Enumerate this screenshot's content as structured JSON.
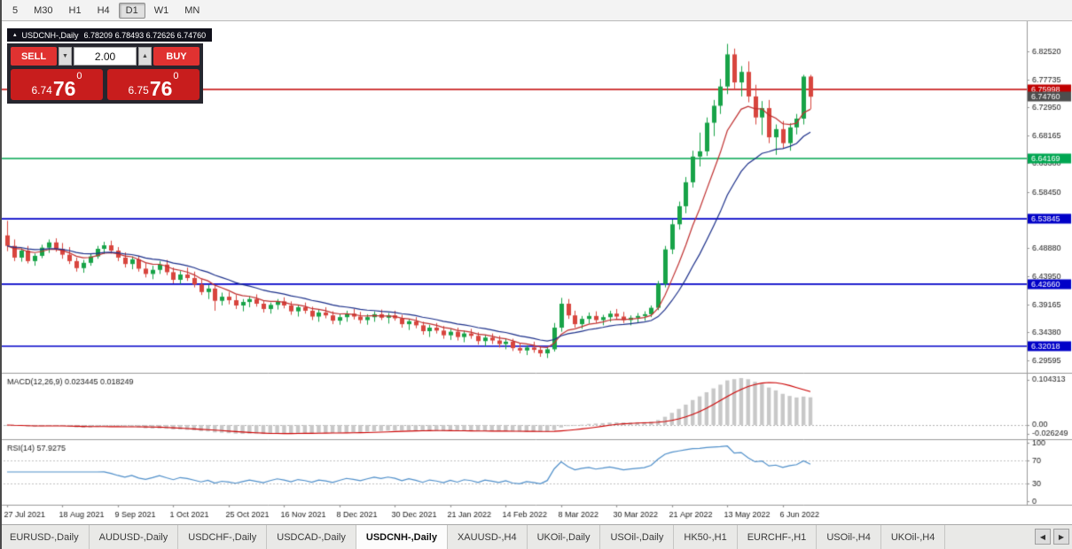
{
  "icons": {
    "marker": "▴",
    "chevron_down": "▼",
    "chevron_up": "▲",
    "nav_left": "◀",
    "nav_right": "▶"
  },
  "toolbar": {
    "timeframes": [
      {
        "label": "5",
        "active": false
      },
      {
        "label": "M30",
        "active": false
      },
      {
        "label": "H1",
        "active": false
      },
      {
        "label": "H4",
        "active": false
      },
      {
        "label": "D1",
        "active": true
      },
      {
        "label": "W1",
        "active": false
      },
      {
        "label": "MN",
        "active": false
      }
    ]
  },
  "info_bar": {
    "symbol": "USDCNH-,Daily",
    "ohlc": "6.78209 6.78493 6.72626 6.74760"
  },
  "trade_panel": {
    "sell_label": "SELL",
    "buy_label": "BUY",
    "volume": "2.00",
    "sell_price": {
      "prefix": "6.74",
      "big": "76",
      "sup": "0"
    },
    "buy_price": {
      "prefix": "6.75",
      "big": "76",
      "sup": "0"
    }
  },
  "chart_data": {
    "type": "candlestick",
    "symbol": "USDCNH-,Daily",
    "title": "USDCNH-,Daily",
    "y_top": 6.8252,
    "y_bottom": 6.29595,
    "y_ticks": [
      "6.82520",
      "6.77735",
      "6.72950",
      "6.68165",
      "6.63380",
      "6.58450",
      "6.53845",
      "6.48880",
      "6.43950",
      "6.39165",
      "6.34380",
      "6.29595"
    ],
    "x_labels": [
      {
        "index": 0,
        "text": "27 Jul 2021"
      },
      {
        "index": 8,
        "text": "18 Aug 2021"
      },
      {
        "index": 16,
        "text": "9 Sep 2021"
      },
      {
        "index": 24,
        "text": "1 Oct 2021"
      },
      {
        "index": 32,
        "text": "25 Oct 2021"
      },
      {
        "index": 40,
        "text": "16 Nov 2021"
      },
      {
        "index": 48,
        "text": "8 Dec 2021"
      },
      {
        "index": 56,
        "text": "30 Dec 2021"
      },
      {
        "index": 64,
        "text": "21 Jan 2022"
      },
      {
        "index": 72,
        "text": "14 Feb 2022"
      },
      {
        "index": 80,
        "text": "8 Mar 2022"
      },
      {
        "index": 88,
        "text": "30 Mar 2022"
      },
      {
        "index": 96,
        "text": "21 Apr 2022"
      },
      {
        "index": 104,
        "text": "13 May 2022"
      },
      {
        "index": 112,
        "text": "6 Jun 2022"
      }
    ],
    "h_lines": [
      {
        "price": 6.75998,
        "color": "#c00000",
        "tag": "6.75998"
      },
      {
        "price": 6.64169,
        "color": "#00a651",
        "tag": "6.64169"
      },
      {
        "price": 6.53845,
        "color": "#0000c8",
        "tag": "6.53845"
      },
      {
        "price": 6.4266,
        "color": "#0000c8",
        "tag": "6.42660"
      },
      {
        "price": 6.32018,
        "color": "#0000c8",
        "tag": "6.32018"
      }
    ],
    "current_price": {
      "price": 6.7476,
      "tag": "6.74760",
      "color": "#4d4d4d"
    },
    "style": {
      "up": "#18a348",
      "down": "#d8453e",
      "ma_fast": "#c03030",
      "ma_slow": "#1b2f8a",
      "macd_hist": "#c8c8c8",
      "macd_signal": "#cc0000",
      "rsi_line": "#4f8fca",
      "grid": "#9a9a9a",
      "dotted": "#c0c0c0"
    },
    "candles": [
      [
        6.51,
        6.535,
        6.483,
        6.492
      ],
      [
        6.492,
        6.503,
        6.466,
        6.472
      ],
      [
        6.472,
        6.488,
        6.465,
        6.484
      ],
      [
        6.484,
        6.492,
        6.462,
        6.466
      ],
      [
        6.466,
        6.479,
        6.458,
        6.475
      ],
      [
        6.475,
        6.494,
        6.471,
        6.489
      ],
      [
        6.489,
        6.503,
        6.48,
        6.498
      ],
      [
        6.498,
        6.505,
        6.482,
        6.487
      ],
      [
        6.487,
        6.497,
        6.47,
        6.477
      ],
      [
        6.477,
        6.49,
        6.461,
        6.466
      ],
      [
        6.466,
        6.472,
        6.448,
        6.454
      ],
      [
        6.454,
        6.468,
        6.446,
        6.463
      ],
      [
        6.463,
        6.479,
        6.458,
        6.474
      ],
      [
        6.474,
        6.492,
        6.47,
        6.487
      ],
      [
        6.487,
        6.499,
        6.478,
        6.493
      ],
      [
        6.493,
        6.501,
        6.479,
        6.484
      ],
      [
        6.484,
        6.49,
        6.466,
        6.472
      ],
      [
        6.472,
        6.481,
        6.455,
        6.461
      ],
      [
        6.461,
        6.474,
        6.452,
        6.469
      ],
      [
        6.469,
        6.475,
        6.448,
        6.453
      ],
      [
        6.453,
        6.463,
        6.438,
        6.444
      ],
      [
        6.444,
        6.458,
        6.435,
        6.451
      ],
      [
        6.451,
        6.466,
        6.444,
        6.46
      ],
      [
        6.46,
        6.468,
        6.442,
        6.447
      ],
      [
        6.447,
        6.455,
        6.428,
        6.434
      ],
      [
        6.434,
        6.449,
        6.427,
        6.443
      ],
      [
        6.443,
        6.455,
        6.432,
        6.437
      ],
      [
        6.437,
        6.448,
        6.421,
        6.426
      ],
      [
        6.426,
        6.435,
        6.408,
        6.413
      ],
      [
        6.413,
        6.425,
        6.401,
        6.419
      ],
      [
        6.419,
        6.423,
        6.381,
        6.398
      ],
      [
        6.398,
        6.412,
        6.39,
        6.405
      ],
      [
        6.405,
        6.413,
        6.392,
        6.399
      ],
      [
        6.399,
        6.408,
        6.384,
        6.39
      ],
      [
        6.39,
        6.401,
        6.38,
        6.396
      ],
      [
        6.396,
        6.406,
        6.387,
        6.401
      ],
      [
        6.401,
        6.409,
        6.388,
        6.393
      ],
      [
        6.393,
        6.399,
        6.378,
        6.384
      ],
      [
        6.384,
        6.395,
        6.376,
        6.391
      ],
      [
        6.391,
        6.401,
        6.383,
        6.397
      ],
      [
        6.397,
        6.404,
        6.385,
        6.39
      ],
      [
        6.39,
        6.397,
        6.374,
        6.38
      ],
      [
        6.38,
        6.391,
        6.371,
        6.387
      ],
      [
        6.387,
        6.395,
        6.376,
        6.381
      ],
      [
        6.381,
        6.388,
        6.365,
        6.371
      ],
      [
        6.371,
        6.383,
        6.362,
        6.378
      ],
      [
        6.378,
        6.387,
        6.368,
        6.373
      ],
      [
        6.373,
        6.38,
        6.358,
        6.364
      ],
      [
        6.364,
        6.376,
        6.357,
        6.37
      ],
      [
        6.37,
        6.381,
        6.362,
        6.376
      ],
      [
        6.376,
        6.384,
        6.366,
        6.371
      ],
      [
        6.371,
        6.379,
        6.359,
        6.365
      ],
      [
        6.365,
        6.375,
        6.357,
        6.37
      ],
      [
        6.37,
        6.38,
        6.362,
        6.375
      ],
      [
        6.375,
        6.383,
        6.365,
        6.369
      ],
      [
        6.369,
        6.377,
        6.359,
        6.373
      ],
      [
        6.373,
        6.381,
        6.364,
        6.368
      ],
      [
        6.368,
        6.374,
        6.352,
        6.358
      ],
      [
        6.358,
        6.367,
        6.348,
        6.363
      ],
      [
        6.363,
        6.37,
        6.351,
        6.356
      ],
      [
        6.356,
        6.362,
        6.34,
        6.346
      ],
      [
        6.346,
        6.357,
        6.336,
        6.352
      ],
      [
        6.352,
        6.36,
        6.342,
        6.347
      ],
      [
        6.347,
        6.355,
        6.333,
        6.339
      ],
      [
        6.339,
        6.35,
        6.331,
        6.345
      ],
      [
        6.345,
        6.352,
        6.33,
        6.336
      ],
      [
        6.336,
        6.347,
        6.327,
        6.342
      ],
      [
        6.342,
        6.35,
        6.333,
        6.338
      ],
      [
        6.338,
        6.344,
        6.323,
        6.329
      ],
      [
        6.329,
        6.34,
        6.32,
        6.335
      ],
      [
        6.335,
        6.342,
        6.324,
        6.33
      ],
      [
        6.33,
        6.338,
        6.318,
        6.324
      ],
      [
        6.324,
        6.334,
        6.315,
        6.328
      ],
      [
        6.328,
        6.333,
        6.312,
        6.317
      ],
      [
        6.317,
        6.326,
        6.308,
        6.313
      ],
      [
        6.313,
        6.322,
        6.305,
        6.318
      ],
      [
        6.318,
        6.328,
        6.309,
        6.314
      ],
      [
        6.314,
        6.32,
        6.302,
        6.308
      ],
      [
        6.308,
        6.319,
        6.3,
        6.315
      ],
      [
        6.315,
        6.36,
        6.311,
        6.352
      ],
      [
        6.352,
        6.403,
        6.345,
        6.393
      ],
      [
        6.393,
        6.401,
        6.367,
        6.373
      ],
      [
        6.373,
        6.381,
        6.352,
        6.358
      ],
      [
        6.358,
        6.372,
        6.35,
        6.367
      ],
      [
        6.367,
        6.378,
        6.359,
        6.372
      ],
      [
        6.372,
        6.38,
        6.36,
        6.365
      ],
      [
        6.365,
        6.374,
        6.356,
        6.37
      ],
      [
        6.37,
        6.381,
        6.362,
        6.376
      ],
      [
        6.376,
        6.384,
        6.366,
        6.371
      ],
      [
        6.371,
        6.379,
        6.36,
        6.365
      ],
      [
        6.365,
        6.373,
        6.356,
        6.369
      ],
      [
        6.369,
        6.377,
        6.361,
        6.372
      ],
      [
        6.372,
        6.38,
        6.364,
        6.375
      ],
      [
        6.375,
        6.39,
        6.37,
        6.386
      ],
      [
        6.386,
        6.432,
        6.382,
        6.427
      ],
      [
        6.427,
        6.492,
        6.421,
        6.486
      ],
      [
        6.486,
        6.537,
        6.478,
        6.529
      ],
      [
        6.529,
        6.568,
        6.52,
        6.56
      ],
      [
        6.56,
        6.61,
        6.548,
        6.601
      ],
      [
        6.601,
        6.655,
        6.592,
        6.645
      ],
      [
        6.645,
        6.686,
        6.628,
        6.654
      ],
      [
        6.654,
        6.712,
        6.646,
        6.703
      ],
      [
        6.703,
        6.742,
        6.68,
        6.732
      ],
      [
        6.732,
        6.778,
        6.718,
        6.765
      ],
      [
        6.765,
        6.838,
        6.752,
        6.82
      ],
      [
        6.82,
        6.83,
        6.76,
        6.772
      ],
      [
        6.772,
        6.8,
        6.748,
        6.79
      ],
      [
        6.79,
        6.808,
        6.738,
        6.748
      ],
      [
        6.748,
        6.768,
        6.7,
        6.712
      ],
      [
        6.712,
        6.74,
        6.682,
        6.728
      ],
      [
        6.728,
        6.742,
        6.668,
        6.678
      ],
      [
        6.678,
        6.7,
        6.648,
        6.692
      ],
      [
        6.692,
        6.706,
        6.66,
        6.668
      ],
      [
        6.668,
        6.702,
        6.655,
        6.695
      ],
      [
        6.695,
        6.718,
        6.683,
        6.71
      ],
      [
        6.71,
        6.785,
        6.7,
        6.782
      ],
      [
        6.78209,
        6.78493,
        6.72626,
        6.7476
      ]
    ],
    "indicators": {
      "macd": {
        "label": "MACD(12,26,9)",
        "value1": "0.023445",
        "value2": "0.018249",
        "fast": 12,
        "slow": 26,
        "signal": 9,
        "axis_max": "0.104313",
        "axis_zero": "0.00",
        "axis_min": "-0.026249"
      },
      "rsi": {
        "label": "RSI(14)",
        "value": "57.9275",
        "period": 14,
        "levels": [
          "100",
          "70",
          "30",
          "0"
        ]
      }
    }
  },
  "bottom_tabs": {
    "items": [
      {
        "label": "EURUSD-,Daily",
        "active": false
      },
      {
        "label": "AUDUSD-,Daily",
        "active": false
      },
      {
        "label": "USDCHF-,Daily",
        "active": false
      },
      {
        "label": "USDCAD-,Daily",
        "active": false
      },
      {
        "label": "USDCNH-,Daily",
        "active": true
      },
      {
        "label": "XAUUSD-,H4",
        "active": false
      },
      {
        "label": "UKOil-,Daily",
        "active": false
      },
      {
        "label": "USOil-,Daily",
        "active": false
      },
      {
        "label": "HK50-,H1",
        "active": false
      },
      {
        "label": "EURCHF-,H1",
        "active": false
      },
      {
        "label": "USOil-,H4",
        "active": false
      },
      {
        "label": "UKOil-,H4",
        "active": false
      }
    ]
  }
}
